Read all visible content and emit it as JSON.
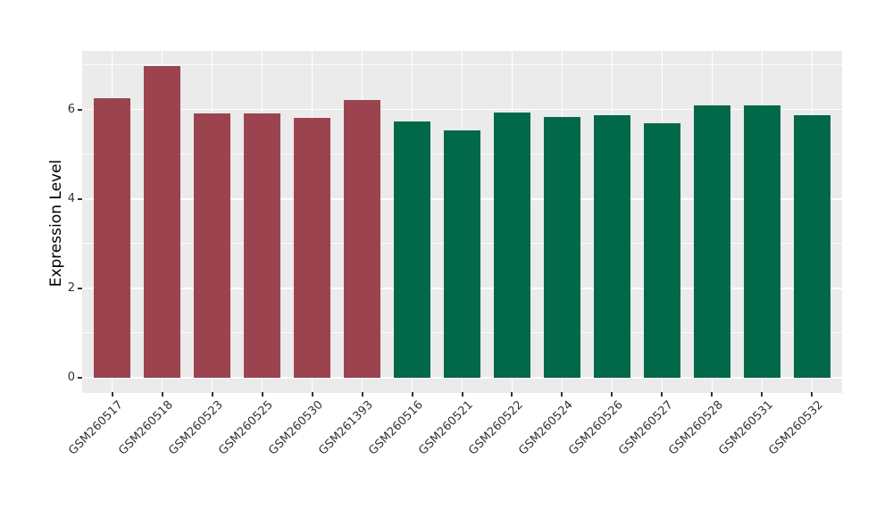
{
  "chart_data": {
    "type": "bar",
    "title": "",
    "xlabel": "",
    "ylabel": "Expression Level",
    "categories": [
      "GSM260517",
      "GSM260518",
      "GSM260523",
      "GSM260525",
      "GSM260530",
      "GSM261393",
      "GSM260516",
      "GSM260521",
      "GSM260522",
      "GSM260524",
      "GSM260526",
      "GSM260527",
      "GSM260528",
      "GSM260531",
      "GSM260532"
    ],
    "values": [
      6.25,
      6.97,
      5.91,
      5.91,
      5.82,
      6.22,
      5.73,
      5.53,
      5.93,
      5.83,
      5.87,
      5.69,
      6.1,
      6.1,
      5.87
    ],
    "bar_colors": [
      "#9B4450",
      "#9B4450",
      "#9B4450",
      "#9B4450",
      "#9B4450",
      "#9B4450",
      "#02684A",
      "#02684A",
      "#02684A",
      "#02684A",
      "#02684A",
      "#02684A",
      "#02684A",
      "#02684A",
      "#02684A"
    ],
    "groups": [
      {
        "name": "maroon-group",
        "color": "#9B4450",
        "categories": [
          "GSM260517",
          "GSM260518",
          "GSM260523",
          "GSM260525",
          "GSM260530",
          "GSM261393"
        ]
      },
      {
        "name": "green-group",
        "color": "#02684A",
        "categories": [
          "GSM260516",
          "GSM260521",
          "GSM260522",
          "GSM260524",
          "GSM260526",
          "GSM260527",
          "GSM260528",
          "GSM260531",
          "GSM260532"
        ]
      }
    ],
    "ylim": [
      -0.35,
      7.31
    ],
    "yticks": [
      0,
      2,
      4,
      6
    ],
    "yminorticks": [
      1,
      3,
      5,
      7
    ],
    "grid": true,
    "legend": "none",
    "x_tick_rotation_deg": 45,
    "colors": {
      "panel_bg": "#EBEBEB",
      "grid_major": "#FFFFFF",
      "grid_minor": "#FFFFFF",
      "tick_text": "#333333",
      "axis_title": "#000000"
    }
  }
}
